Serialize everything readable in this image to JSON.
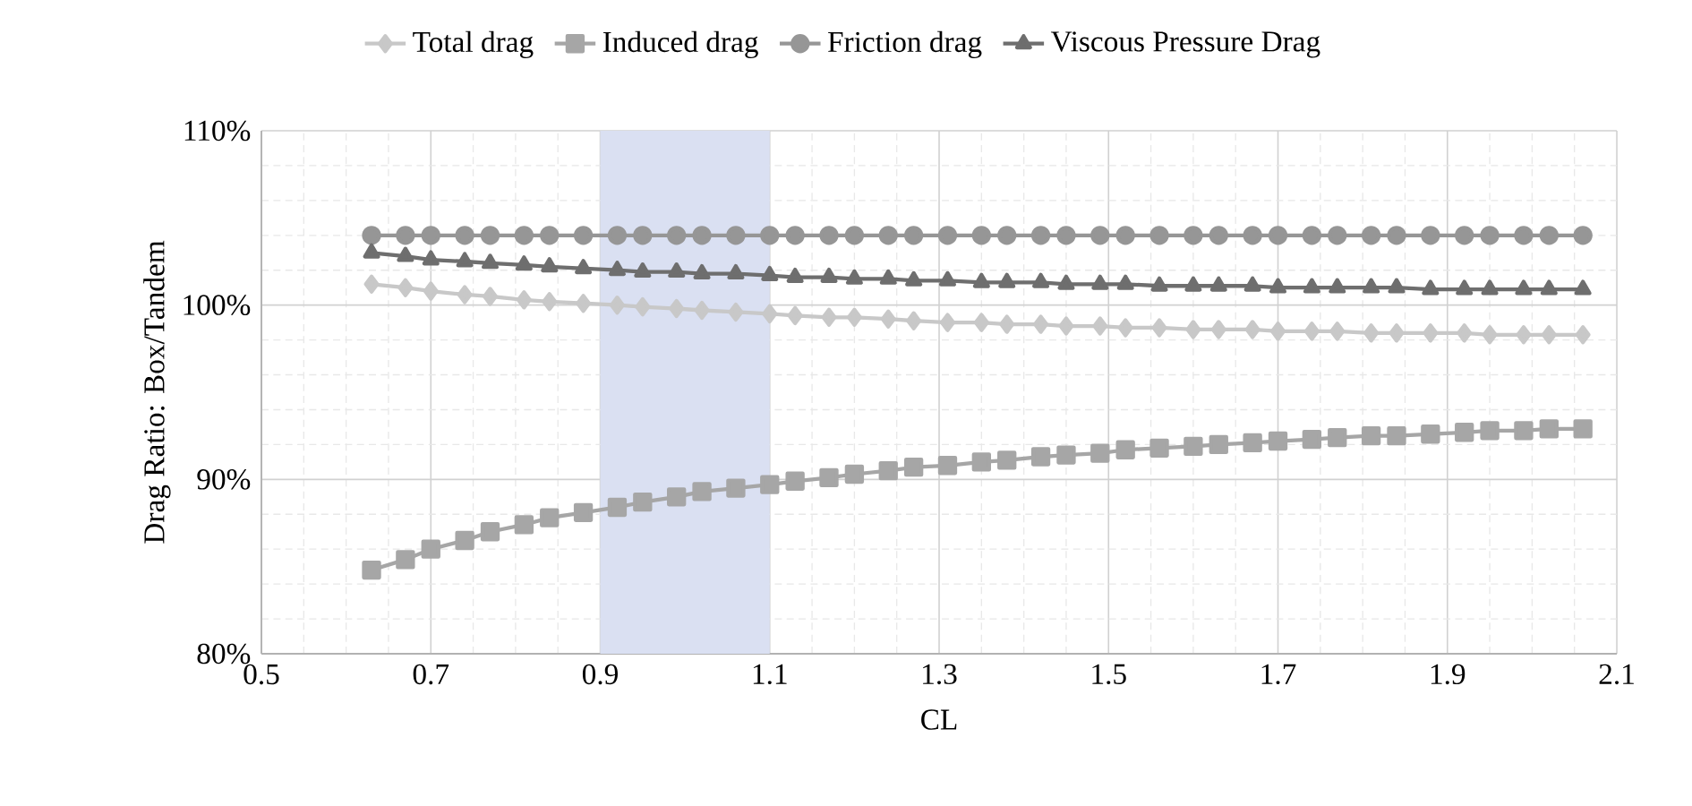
{
  "chart_data": {
    "type": "line",
    "xlabel": "CL",
    "ylabel": "Drag Ratio: Box/Tandem",
    "x": [
      0.63,
      0.67,
      0.7,
      0.74,
      0.77,
      0.81,
      0.84,
      0.88,
      0.92,
      0.95,
      0.99,
      1.02,
      1.06,
      1.1,
      1.13,
      1.17,
      1.2,
      1.24,
      1.27,
      1.31,
      1.35,
      1.38,
      1.42,
      1.45,
      1.49,
      1.52,
      1.56,
      1.6,
      1.63,
      1.67,
      1.7,
      1.74,
      1.77,
      1.81,
      1.84,
      1.88,
      1.92,
      1.95,
      1.99,
      2.02,
      2.06
    ],
    "series": [
      {
        "name": "Total drag",
        "color": "#c8c8c8",
        "marker": "diamond",
        "values": [
          101.2,
          101.0,
          100.8,
          100.6,
          100.5,
          100.3,
          100.2,
          100.1,
          100.0,
          99.9,
          99.8,
          99.7,
          99.6,
          99.5,
          99.4,
          99.3,
          99.3,
          99.2,
          99.1,
          99.0,
          99.0,
          98.9,
          98.9,
          98.8,
          98.8,
          98.7,
          98.7,
          98.6,
          98.6,
          98.6,
          98.5,
          98.5,
          98.5,
          98.4,
          98.4,
          98.4,
          98.4,
          98.3,
          98.3,
          98.3,
          98.3
        ]
      },
      {
        "name": "Induced drag",
        "color": "#a6a6a6",
        "marker": "square",
        "values": [
          84.8,
          85.4,
          86.0,
          86.5,
          87.0,
          87.4,
          87.8,
          88.1,
          88.4,
          88.7,
          89.0,
          89.3,
          89.5,
          89.7,
          89.9,
          90.1,
          90.3,
          90.5,
          90.7,
          90.8,
          91.0,
          91.1,
          91.3,
          91.4,
          91.5,
          91.7,
          91.8,
          91.9,
          92.0,
          92.1,
          92.2,
          92.3,
          92.4,
          92.5,
          92.5,
          92.6,
          92.7,
          92.8,
          92.8,
          92.9,
          92.9
        ]
      },
      {
        "name": "Friction drag",
        "color": "#969696",
        "marker": "circle",
        "values": [
          104.0,
          104.0,
          104.0,
          104.0,
          104.0,
          104.0,
          104.0,
          104.0,
          104.0,
          104.0,
          104.0,
          104.0,
          104.0,
          104.0,
          104.0,
          104.0,
          104.0,
          104.0,
          104.0,
          104.0,
          104.0,
          104.0,
          104.0,
          104.0,
          104.0,
          104.0,
          104.0,
          104.0,
          104.0,
          104.0,
          104.0,
          104.0,
          104.0,
          104.0,
          104.0,
          104.0,
          104.0,
          104.0,
          104.0,
          104.0,
          104.0
        ]
      },
      {
        "name": "Viscous Pressure Drag",
        "color": "#6e6e6e",
        "marker": "triangle",
        "values": [
          103.0,
          102.8,
          102.6,
          102.5,
          102.4,
          102.3,
          102.2,
          102.1,
          102.0,
          101.9,
          101.9,
          101.8,
          101.8,
          101.7,
          101.6,
          101.6,
          101.5,
          101.5,
          101.4,
          101.4,
          101.3,
          101.3,
          101.3,
          101.2,
          101.2,
          101.2,
          101.1,
          101.1,
          101.1,
          101.1,
          101.0,
          101.0,
          101.0,
          101.0,
          101.0,
          100.9,
          100.9,
          100.9,
          100.9,
          100.9,
          100.9
        ]
      }
    ],
    "xlim": [
      0.5,
      2.1
    ],
    "xticks": [
      0.5,
      0.7,
      0.9,
      1.1,
      1.3,
      1.5,
      1.7,
      1.9,
      2.1
    ],
    "ylim": [
      80,
      110
    ],
    "yticks": [
      {
        "value": 80,
        "label": "80%"
      },
      {
        "value": 90,
        "label": "90%"
      },
      {
        "value": 100,
        "label": "100%"
      },
      {
        "value": 110,
        "label": "110%"
      }
    ],
    "bands": [
      {
        "axis": "x",
        "from": 0.9,
        "to": 1.1,
        "color": "#dae0f2"
      }
    ],
    "grid": true,
    "legend": "top",
    "line_style": "solid"
  }
}
